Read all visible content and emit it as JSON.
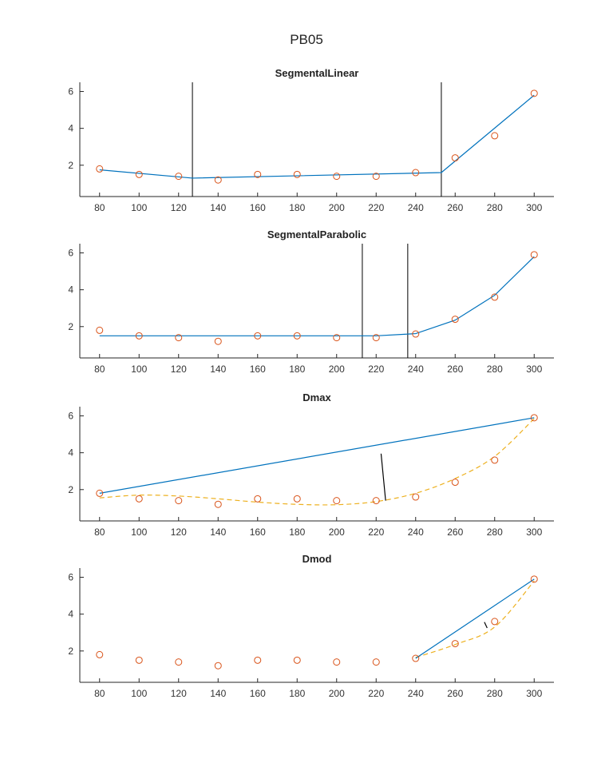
{
  "figure_title": "PB05",
  "colors": {
    "axis": "#262626",
    "fit": "#0072BD",
    "marker": "#D95319",
    "curve": "#EDB120",
    "breakpoint": "#000000"
  },
  "chart_data": [
    {
      "type": "scatter",
      "title": "SegmentalLinear",
      "xlim": [
        70,
        310
      ],
      "ylim": [
        0.3,
        6.5
      ],
      "xticks": [
        80,
        100,
        120,
        140,
        160,
        180,
        200,
        220,
        240,
        260,
        280,
        300
      ],
      "yticks": [
        2,
        4,
        6
      ],
      "grid": false,
      "points": {
        "x": [
          80,
          100,
          120,
          140,
          160,
          180,
          200,
          220,
          240,
          260,
          280,
          300
        ],
        "y": [
          1.8,
          1.5,
          1.4,
          1.2,
          1.5,
          1.5,
          1.4,
          1.4,
          1.6,
          2.4,
          3.6,
          5.9
        ]
      },
      "fit_line": {
        "x": [
          80,
          127,
          253,
          300
        ],
        "y": [
          1.75,
          1.3,
          1.6,
          5.8
        ]
      },
      "breakpoints": [
        127,
        253
      ]
    },
    {
      "type": "scatter",
      "title": "SegmentalParabolic",
      "xlim": [
        70,
        310
      ],
      "ylim": [
        0.3,
        6.5
      ],
      "xticks": [
        80,
        100,
        120,
        140,
        160,
        180,
        200,
        220,
        240,
        260,
        280,
        300
      ],
      "yticks": [
        2,
        4,
        6
      ],
      "grid": false,
      "points": {
        "x": [
          80,
          100,
          120,
          140,
          160,
          180,
          200,
          220,
          240,
          260,
          280,
          300
        ],
        "y": [
          1.8,
          1.5,
          1.4,
          1.2,
          1.5,
          1.5,
          1.4,
          1.4,
          1.6,
          2.4,
          3.6,
          5.9
        ]
      },
      "fit_line": {
        "x": [
          80,
          220,
          237,
          240,
          260,
          280,
          300
        ],
        "y": [
          1.5,
          1.5,
          1.6,
          1.62,
          2.35,
          3.7,
          5.8
        ]
      },
      "breakpoints": [
        213,
        236
      ]
    },
    {
      "type": "scatter",
      "title": "Dmax",
      "xlim": [
        70,
        310
      ],
      "ylim": [
        0.3,
        6.5
      ],
      "xticks": [
        80,
        100,
        120,
        140,
        160,
        180,
        200,
        220,
        240,
        260,
        280,
        300
      ],
      "yticks": [
        2,
        4,
        6
      ],
      "grid": false,
      "points": {
        "x": [
          80,
          100,
          120,
          140,
          160,
          180,
          200,
          220,
          240,
          260,
          280,
          300
        ],
        "y": [
          1.8,
          1.5,
          1.4,
          1.2,
          1.5,
          1.5,
          1.4,
          1.4,
          1.6,
          2.4,
          3.6,
          5.9
        ]
      },
      "fit_line": {
        "x": [
          80,
          300
        ],
        "y": [
          1.8,
          5.9
        ]
      },
      "curve": {
        "x": [
          80,
          100,
          120,
          140,
          160,
          180,
          200,
          220,
          240,
          260,
          280,
          300
        ],
        "y": [
          1.55,
          1.7,
          1.65,
          1.5,
          1.32,
          1.2,
          1.18,
          1.35,
          1.8,
          2.6,
          3.8,
          5.85
        ]
      },
      "perpendicular": {
        "x": [
          222.5,
          224.8
        ],
        "y": [
          3.95,
          1.4
        ]
      }
    },
    {
      "type": "scatter",
      "title": "Dmod",
      "xlim": [
        70,
        310
      ],
      "ylim": [
        0.3,
        6.5
      ],
      "xticks": [
        80,
        100,
        120,
        140,
        160,
        180,
        200,
        220,
        240,
        260,
        280,
        300
      ],
      "yticks": [
        2,
        4,
        6
      ],
      "grid": false,
      "points": {
        "x": [
          80,
          100,
          120,
          140,
          160,
          180,
          200,
          220,
          240,
          260,
          280,
          300
        ],
        "y": [
          1.8,
          1.5,
          1.4,
          1.2,
          1.5,
          1.5,
          1.4,
          1.4,
          1.6,
          2.4,
          3.6,
          5.9
        ]
      },
      "fit_line": {
        "x": [
          240,
          300
        ],
        "y": [
          1.6,
          5.9
        ]
      },
      "curve": {
        "x": [
          240,
          260,
          280,
          300
        ],
        "y": [
          1.65,
          2.35,
          3.3,
          5.8
        ]
      },
      "perpendicular": {
        "x": [
          274.8,
          276.2
        ],
        "y": [
          3.57,
          3.25
        ]
      }
    }
  ]
}
